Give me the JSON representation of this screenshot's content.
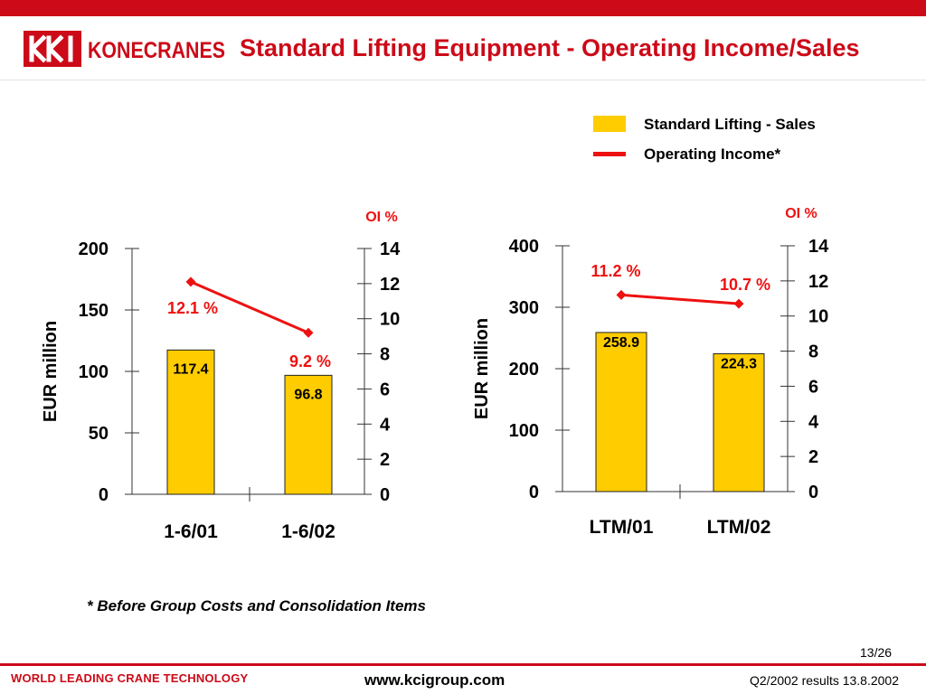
{
  "header": {
    "brand": "KONECRANES",
    "title": "Standard Lifting Equipment - Operating Income/Sales"
  },
  "colors": {
    "brand_red": "#cc0a18",
    "bar_fill": "#ffcc00",
    "oi_line": "#ee1111"
  },
  "legend": {
    "sales_label": "Standard Lifting - Sales",
    "oi_label": "Operating Income*"
  },
  "chart_data": [
    {
      "type": "bar",
      "categories": [
        "1-6/01",
        "1-6/02"
      ],
      "series": [
        {
          "name": "Standard Lifting - Sales",
          "values": [
            117.4,
            96.8
          ],
          "labels": [
            "117.4",
            "96.8"
          ],
          "axis": "left"
        },
        {
          "name": "Operating Income*",
          "values": [
            12.1,
            9.2
          ],
          "labels": [
            "12.1 %",
            "9.2 %"
          ],
          "axis": "right",
          "type": "line"
        }
      ],
      "ylabel": "EUR million",
      "ylim": [
        0,
        200
      ],
      "yticks": [
        "0",
        "50",
        "100",
        "150",
        "200"
      ],
      "y2label": "OI %",
      "y2lim": [
        0,
        14
      ],
      "y2ticks": [
        "0",
        "2",
        "4",
        "6",
        "8",
        "10",
        "12",
        "14"
      ],
      "grid": false
    },
    {
      "type": "bar",
      "categories": [
        "LTM/01",
        "LTM/02"
      ],
      "series": [
        {
          "name": "Standard Lifting - Sales",
          "values": [
            258.9,
            224.3
          ],
          "labels": [
            "258.9",
            "224.3"
          ],
          "axis": "left"
        },
        {
          "name": "Operating Income*",
          "values": [
            11.2,
            10.7
          ],
          "labels": [
            "11.2 %",
            "10.7 %"
          ],
          "axis": "right",
          "type": "line"
        }
      ],
      "ylabel": "EUR million",
      "ylim": [
        0,
        400
      ],
      "yticks": [
        "0",
        "100",
        "200",
        "300",
        "400"
      ],
      "y2label": "OI %",
      "y2lim": [
        0,
        14
      ],
      "y2ticks": [
        "0",
        "2",
        "4",
        "6",
        "8",
        "10",
        "12",
        "14"
      ],
      "grid": false
    }
  ],
  "footnote": "* Before Group Costs and Consolidation Items",
  "footer": {
    "page": "13/26",
    "tagline": "WORLD LEADING CRANE TECHNOLOGY",
    "website": "www.kcigroup.com",
    "report_date": "Q2/2002 results 13.8.2002"
  }
}
